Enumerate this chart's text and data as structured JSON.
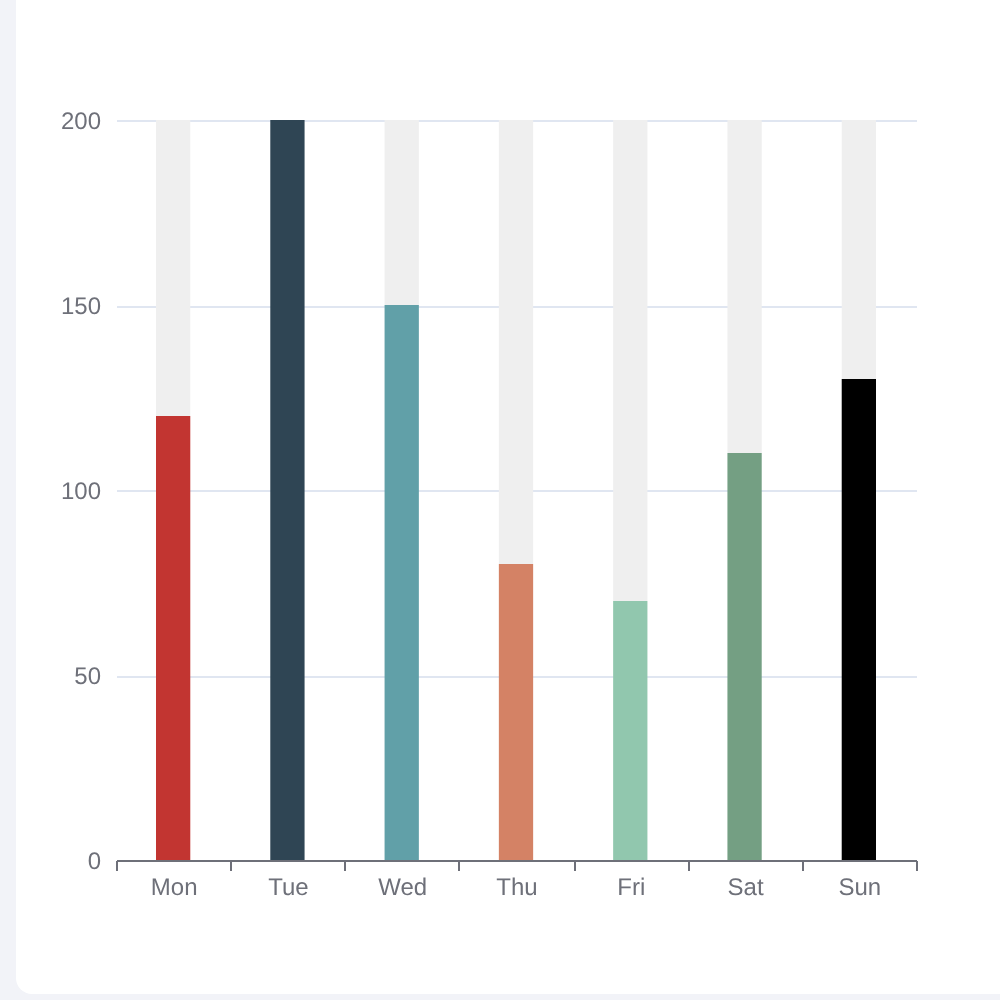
{
  "chart_data": {
    "type": "bar",
    "categories": [
      "Mon",
      "Tue",
      "Wed",
      "Thu",
      "Fri",
      "Sat",
      "Sun"
    ],
    "stacked": true,
    "series": [
      {
        "colors": [
          "#c23531",
          "#2f4554",
          "#61a0a8",
          "#d48265",
          "#91c7ae",
          "#749f83",
          "#000000"
        ],
        "values": [
          120,
          200,
          150,
          80,
          70,
          110,
          130
        ]
      },
      {
        "color": "#efefef",
        "values": [
          80,
          0,
          50,
          120,
          130,
          90,
          70
        ]
      }
    ],
    "ylim": [
      0,
      200
    ],
    "yticks": [
      0,
      50,
      100,
      150,
      200
    ],
    "grid": "y"
  }
}
